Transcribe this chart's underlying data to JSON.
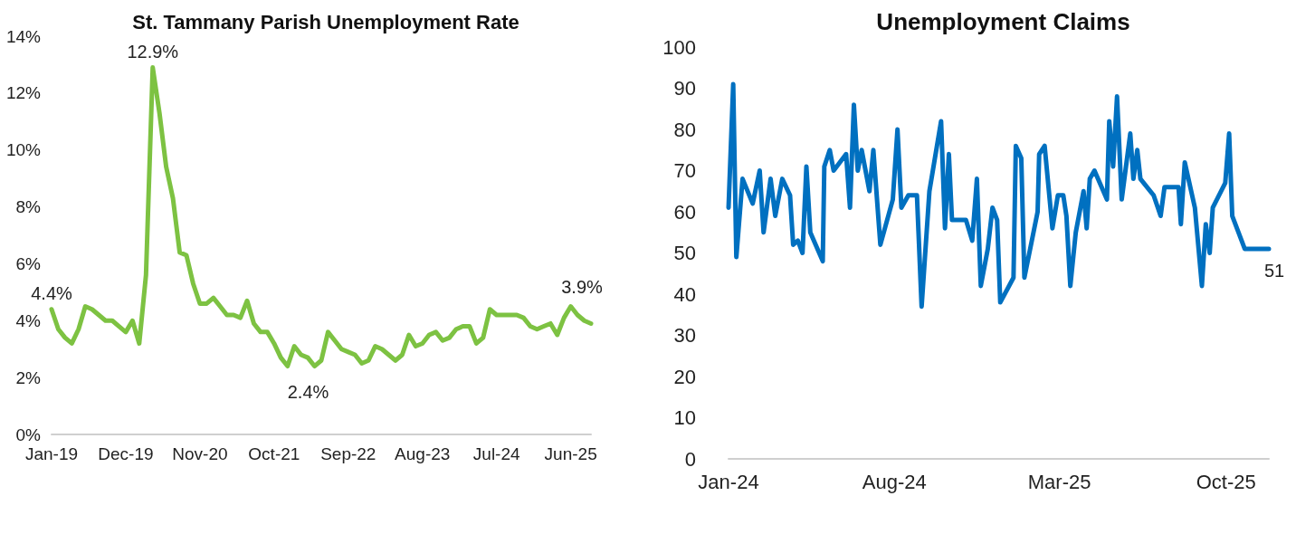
{
  "chart_data": [
    {
      "type": "line",
      "title": "St. Tammany Parish Unemployment Rate",
      "categories": [
        "Jan-19",
        null,
        null,
        null,
        null,
        null,
        null,
        null,
        null,
        null,
        null,
        "Dec-19",
        null,
        null,
        null,
        null,
        null,
        null,
        null,
        null,
        null,
        null,
        "Nov-20",
        null,
        null,
        null,
        null,
        null,
        null,
        null,
        null,
        null,
        null,
        "Oct-21",
        null,
        null,
        null,
        null,
        null,
        null,
        null,
        null,
        null,
        null,
        "Sep-22",
        null,
        null,
        null,
        null,
        null,
        null,
        null,
        null,
        null,
        null,
        "Aug-23",
        null,
        null,
        null,
        null,
        null,
        null,
        null,
        null,
        null,
        null,
        "Jul-24",
        null,
        null,
        null,
        null,
        null,
        null,
        null,
        null,
        null,
        null,
        "Jun-25",
        null,
        null,
        null
      ],
      "series": [
        {
          "color": "#7dc242",
          "values": [
            4.4,
            3.7,
            3.4,
            3.2,
            3.7,
            4.5,
            4.4,
            4.2,
            4.0,
            4.0,
            3.8,
            3.6,
            4.0,
            3.2,
            5.6,
            12.9,
            11.3,
            9.4,
            8.3,
            6.4,
            6.3,
            5.3,
            4.6,
            4.6,
            4.8,
            4.5,
            4.2,
            4.2,
            4.1,
            4.7,
            3.9,
            3.6,
            3.6,
            3.2,
            2.7,
            2.4,
            3.1,
            2.8,
            2.7,
            2.4,
            2.6,
            3.6,
            3.3,
            3.0,
            2.9,
            2.8,
            2.5,
            2.6,
            3.1,
            3.0,
            2.8,
            2.6,
            2.8,
            3.5,
            3.1,
            3.2,
            3.5,
            3.6,
            3.3,
            3.4,
            3.7,
            3.8,
            3.8,
            3.2,
            3.4,
            4.4,
            4.2,
            4.2,
            4.2,
            4.2,
            4.1,
            3.8,
            3.7,
            3.8,
            3.9,
            3.5,
            4.1,
            4.5,
            4.2,
            4.0,
            3.9
          ],
          "value_labels": [
            "4.4%",
            null,
            null,
            null,
            null,
            null,
            null,
            null,
            null,
            null,
            null,
            null,
            null,
            null,
            null,
            "12.9%",
            null,
            null,
            null,
            null,
            null,
            null,
            null,
            null,
            null,
            null,
            null,
            null,
            null,
            null,
            null,
            null,
            null,
            null,
            null,
            "2.4%",
            null,
            null,
            null,
            null,
            null,
            null,
            null,
            null,
            null,
            null,
            null,
            null,
            null,
            null,
            null,
            null,
            null,
            null,
            null,
            null,
            null,
            null,
            null,
            null,
            null,
            null,
            null,
            null,
            null,
            null,
            null,
            null,
            null,
            null,
            null,
            null,
            null,
            null,
            null,
            null,
            null,
            null,
            null,
            null,
            "3.9%"
          ]
        }
      ],
      "ylim": [
        0,
        14
      ],
      "yticks": [
        {
          "value": 0,
          "label": "0%"
        },
        {
          "value": 2,
          "label": "2%"
        },
        {
          "value": 4,
          "label": "4%"
        },
        {
          "value": 6,
          "label": "6%"
        },
        {
          "value": 8,
          "label": "8%"
        },
        {
          "value": 10,
          "label": "10%"
        },
        {
          "value": 12,
          "label": "12%"
        },
        {
          "value": 14,
          "label": "14%"
        }
      ],
      "grid": false,
      "marker": "none",
      "line_style": "solid"
    },
    {
      "type": "line",
      "title": "Unemployment Claims",
      "x": [
        "2024-01-01",
        "2024-01-07",
        "2024-01-11",
        "2024-01-19",
        "2024-02-01",
        "2024-02-10",
        "2024-02-15",
        "2024-02-24",
        "2024-03-01",
        "2024-03-10",
        "2024-03-20",
        "2024-03-24",
        "2024-03-30",
        "2024-04-05",
        "2024-04-10",
        "2024-04-15",
        "2024-05-01",
        "2024-05-03",
        "2024-05-10",
        "2024-05-15",
        "2024-05-31",
        "2024-06-05",
        "2024-06-10",
        "2024-06-15",
        "2024-06-20",
        "2024-06-30",
        "2024-07-05",
        "2024-07-14",
        "2024-07-30",
        "2024-08-05",
        "2024-08-10",
        "2024-08-19",
        "2024-08-30",
        "2024-09-05",
        "2024-09-15",
        "2024-09-30",
        "2024-10-05",
        "2024-10-10",
        "2024-10-14",
        "2024-11-01",
        "2024-11-09",
        "2024-11-15",
        "2024-11-20",
        "2024-11-29",
        "2024-12-05",
        "2024-12-11",
        "2024-12-15",
        "2025-01-01",
        "2025-01-04",
        "2025-01-11",
        "2025-01-15",
        "2025-02-01",
        "2025-02-03",
        "2025-02-10",
        "2025-02-20",
        "2025-02-27",
        "2025-03-06",
        "2025-03-10",
        "2025-03-15",
        "2025-03-22",
        "2025-04-01",
        "2025-04-05",
        "2025-04-09",
        "2025-04-15",
        "2025-05-01",
        "2025-05-04",
        "2025-05-09",
        "2025-05-14",
        "2025-05-20",
        "2025-05-31",
        "2025-06-04",
        "2025-06-09",
        "2025-06-13",
        "2025-06-30",
        "2025-07-09",
        "2025-07-14",
        "2025-08-01",
        "2025-08-04",
        "2025-08-09",
        "2025-08-22",
        "2025-08-31",
        "2025-09-05",
        "2025-09-10",
        "2025-09-14",
        "2025-09-30",
        "2025-10-05",
        "2025-10-09",
        "2025-10-25",
        "2025-11-25"
      ],
      "series": [
        {
          "color": "#0070c0",
          "values": [
            61,
            91,
            49,
            68,
            62,
            70,
            55,
            68,
            59,
            68,
            64,
            52,
            53,
            50,
            71,
            55,
            48,
            71,
            75,
            70,
            74,
            61,
            86,
            70,
            75,
            65,
            75,
            52,
            63,
            80,
            61,
            64,
            64,
            37,
            65,
            82,
            56,
            74,
            58,
            58,
            53,
            68,
            42,
            51,
            61,
            58,
            38,
            44,
            76,
            73,
            44,
            60,
            74,
            76,
            56,
            64,
            64,
            59,
            42,
            55,
            65,
            56,
            68,
            70,
            63,
            82,
            71,
            88,
            63,
            79,
            68,
            75,
            68,
            64,
            59,
            66,
            66,
            57,
            72,
            61,
            42,
            57,
            50,
            61,
            67,
            79,
            59,
            51,
            51
          ],
          "value_labels": [
            null,
            null,
            null,
            null,
            null,
            null,
            null,
            null,
            null,
            null,
            null,
            null,
            null,
            null,
            null,
            null,
            null,
            null,
            null,
            null,
            null,
            null,
            null,
            null,
            null,
            null,
            null,
            null,
            null,
            null,
            null,
            null,
            null,
            null,
            null,
            null,
            null,
            null,
            null,
            null,
            null,
            null,
            null,
            null,
            null,
            null,
            null,
            null,
            null,
            null,
            null,
            null,
            null,
            null,
            null,
            null,
            null,
            null,
            null,
            null,
            null,
            null,
            null,
            null,
            null,
            null,
            null,
            null,
            null,
            null,
            null,
            null,
            null,
            null,
            null,
            null,
            null,
            null,
            null,
            null,
            null,
            null,
            null,
            null,
            null,
            null,
            null,
            null,
            "51"
          ]
        }
      ],
      "xlim": [
        "2024-01-01",
        "2025-11-25"
      ],
      "xticks": [
        {
          "value": "2024-01-01",
          "label": "Jan-24"
        },
        {
          "value": "2024-08-01",
          "label": "Aug-24"
        },
        {
          "value": "2025-03-01",
          "label": "Mar-25"
        },
        {
          "value": "2025-10-01",
          "label": "Oct-25"
        }
      ],
      "ylim": [
        0,
        100
      ],
      "yticks": [
        0,
        10,
        20,
        30,
        40,
        50,
        60,
        70,
        80,
        90,
        100
      ],
      "grid": false,
      "marker": "none",
      "line_style": "solid"
    }
  ]
}
